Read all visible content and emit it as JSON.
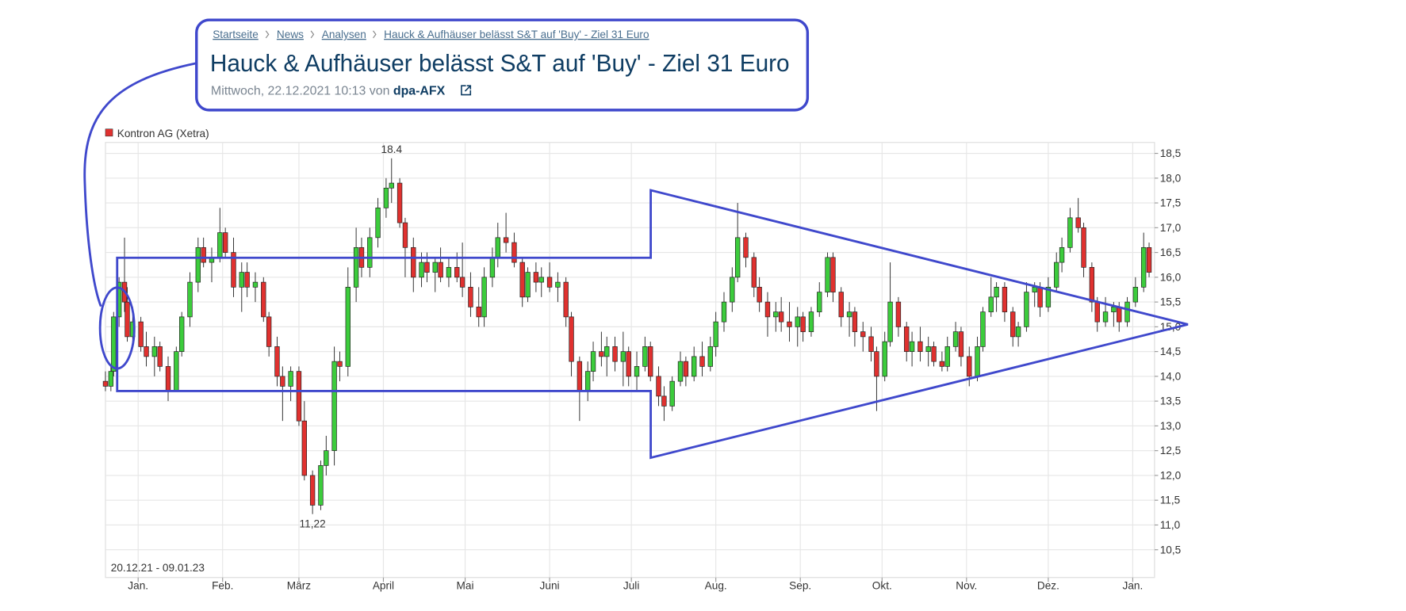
{
  "header": {
    "breadcrumbs": [
      "Startseite",
      "News",
      "Analysen",
      "Hauck & Aufhäuser belässt S&T auf 'Buy' - Ziel 31 Euro"
    ],
    "title": "Hauck & Aufhäuser belässt S&T auf 'Buy' - Ziel 31 Euro",
    "meta": "Mittwoch, 22.12.2021 10:13 von",
    "source": "dpa-AFX"
  },
  "chart_data": {
    "type": "candlestick",
    "period": "20.12.21 - 09.01.23",
    "xlim": [
      0,
      385
    ],
    "xticks": [
      {
        "value": 12,
        "label": "Jan."
      },
      {
        "value": 43,
        "label": "Feb."
      },
      {
        "value": 71,
        "label": "März"
      },
      {
        "value": 102,
        "label": "April"
      },
      {
        "value": 132,
        "label": "Mai"
      },
      {
        "value": 163,
        "label": "Juni"
      },
      {
        "value": 193,
        "label": "Juli"
      },
      {
        "value": 224,
        "label": "Aug."
      },
      {
        "value": 255,
        "label": "Sep."
      },
      {
        "value": 285,
        "label": "Okt."
      },
      {
        "value": 316,
        "label": "Nov."
      },
      {
        "value": 346,
        "label": "Dez."
      },
      {
        "value": 377,
        "label": "Jan."
      }
    ],
    "ylim": [
      9.94,
      18.72
    ],
    "yticks": [
      {
        "value": 10.5,
        "label": "10,5"
      },
      {
        "value": 11,
        "label": "11,0"
      },
      {
        "value": 11.5,
        "label": "11,5"
      },
      {
        "value": 12,
        "label": "12,0"
      },
      {
        "value": 12.5,
        "label": "12,5"
      },
      {
        "value": 13,
        "label": "13,0"
      },
      {
        "value": 13.5,
        "label": "13,5"
      },
      {
        "value": 14,
        "label": "14,0"
      },
      {
        "value": 14.5,
        "label": "14,5"
      },
      {
        "value": 15,
        "label": "15,0"
      },
      {
        "value": 15.5,
        "label": "15,5"
      },
      {
        "value": 16,
        "label": "16,0"
      },
      {
        "value": 16.5,
        "label": "16,5"
      },
      {
        "value": 17,
        "label": "17,0"
      },
      {
        "value": 17.5,
        "label": "17,5"
      },
      {
        "value": 18,
        "label": "18,0"
      },
      {
        "value": 18.5,
        "label": "18,5"
      }
    ],
    "grid": true,
    "high_label": 18.4,
    "low_label": {
      "value": 11.22,
      "label": "11,22"
    },
    "x": [
      0,
      2,
      3,
      5,
      7,
      8,
      10,
      13,
      15,
      18,
      20,
      23,
      26,
      28,
      31,
      34,
      36,
      39,
      42,
      44,
      47,
      50,
      52,
      55,
      58,
      60,
      63,
      65,
      68,
      71,
      73,
      76,
      79,
      81,
      84,
      86,
      89,
      92,
      94,
      97,
      100,
      103,
      105,
      108,
      110,
      113,
      116,
      118,
      121,
      123,
      126,
      129,
      131,
      134,
      137,
      139,
      142,
      144,
      147,
      150,
      153,
      155,
      158,
      160,
      163,
      166,
      169,
      171,
      174,
      177,
      179,
      182,
      184,
      187,
      190,
      192,
      195,
      198,
      200,
      203,
      205,
      208,
      211,
      213,
      216,
      219,
      222,
      224,
      227,
      230,
      232,
      235,
      238,
      240,
      243,
      246,
      248,
      251,
      254,
      256,
      259,
      262,
      265,
      267,
      270,
      273,
      275,
      278,
      281,
      283,
      286,
      288,
      291,
      294,
      296,
      299,
      302,
      304,
      307,
      309,
      312,
      314,
      317,
      320,
      322,
      325,
      327,
      330,
      333,
      335,
      338,
      341,
      343,
      346,
      349,
      351,
      354,
      357,
      359,
      362,
      364,
      367,
      370,
      372,
      375,
      378,
      381,
      383
    ],
    "series": [
      {
        "name": "Kontron AG (Xetra)",
        "color": "#e0312f",
        "up_color": "#3ccc3c",
        "open": [
          13.9,
          13.8,
          14.1,
          15.2,
          15.9,
          15.5,
          14.8,
          15.1,
          14.6,
          14.4,
          14.6,
          14.2,
          13.7,
          14.5,
          15.2,
          15.9,
          16.6,
          16.3,
          16.4,
          16.9,
          16.5,
          15.8,
          16.1,
          15.8,
          15.9,
          15.2,
          14.6,
          14.0,
          13.8,
          14.1,
          13.1,
          12.0,
          11.4,
          12.2,
          12.5,
          14.3,
          14.2,
          15.8,
          16.6,
          16.2,
          16.8,
          17.4,
          17.8,
          17.9,
          17.1,
          16.6,
          16.0,
          16.3,
          16.1,
          16.3,
          16.0,
          16.2,
          16.0,
          15.8,
          15.4,
          15.2,
          16.0,
          16.4,
          16.8,
          16.7,
          16.3,
          15.6,
          16.1,
          15.9,
          16.0,
          15.8,
          15.9,
          15.2,
          14.3,
          13.7,
          14.1,
          14.5,
          14.4,
          14.6,
          14.3,
          14.5,
          14.0,
          14.2,
          14.6,
          14.0,
          13.6,
          13.4,
          13.9,
          14.3,
          14.0,
          14.4,
          14.2,
          14.6,
          15.1,
          15.5,
          16.0,
          16.8,
          16.4,
          15.8,
          15.5,
          15.2,
          15.3,
          15.1,
          15.0,
          15.2,
          14.9,
          15.3,
          15.7,
          16.4,
          15.7,
          15.2,
          15.3,
          14.9,
          14.8,
          14.5,
          14.0,
          14.7,
          15.5,
          15.0,
          14.5,
          14.7,
          14.5,
          14.6,
          14.3,
          14.2,
          14.6,
          14.9,
          14.4,
          14.0,
          14.6,
          15.3,
          15.6,
          15.8,
          15.3,
          14.8,
          15.0,
          15.7,
          15.8,
          15.4,
          15.8,
          16.3,
          16.6,
          17.2,
          17.0,
          16.2,
          15.5,
          15.1,
          15.3,
          15.4,
          15.1,
          15.5,
          15.8,
          16.6
        ],
        "high": [
          14.1,
          14.2,
          15.3,
          16.0,
          16.8,
          15.8,
          15.4,
          15.2,
          14.9,
          14.8,
          14.7,
          14.4,
          14.6,
          15.3,
          16.1,
          16.8,
          16.8,
          16.6,
          17.4,
          17.0,
          16.8,
          16.3,
          16.3,
          16.1,
          16.0,
          15.3,
          14.8,
          14.2,
          14.2,
          14.2,
          13.5,
          12.1,
          12.3,
          12.8,
          14.6,
          14.5,
          16.2,
          17.0,
          16.8,
          17.0,
          17.6,
          18.0,
          18.4,
          18.0,
          17.2,
          16.8,
          16.5,
          16.5,
          16.4,
          16.6,
          16.4,
          16.5,
          16.7,
          16.1,
          15.8,
          16.2,
          16.6,
          17.1,
          17.3,
          16.9,
          16.4,
          16.2,
          16.3,
          16.2,
          16.3,
          16.1,
          16.0,
          15.3,
          14.4,
          14.3,
          14.7,
          14.9,
          14.8,
          14.8,
          14.9,
          14.6,
          14.5,
          14.8,
          14.7,
          14.2,
          13.8,
          14.0,
          14.5,
          14.4,
          14.6,
          14.7,
          14.8,
          15.3,
          15.7,
          16.2,
          17.5,
          16.9,
          16.5,
          16.0,
          15.7,
          15.5,
          15.6,
          15.5,
          15.4,
          15.3,
          15.4,
          15.9,
          16.5,
          16.5,
          15.8,
          15.5,
          15.4,
          15.1,
          15.0,
          14.6,
          14.9,
          16.3,
          15.6,
          15.1,
          14.9,
          15.0,
          14.8,
          14.7,
          14.5,
          14.8,
          15.1,
          15.0,
          14.6,
          14.8,
          15.4,
          16.0,
          15.9,
          15.9,
          15.4,
          15.1,
          15.9,
          15.9,
          15.9,
          16.0,
          16.5,
          16.8,
          17.4,
          17.6,
          17.1,
          16.3,
          15.6,
          15.6,
          15.5,
          15.5,
          15.6,
          16.0,
          16.9,
          16.7
        ],
        "low": [
          13.7,
          13.7,
          14.0,
          15.0,
          15.3,
          14.7,
          14.6,
          14.5,
          14.2,
          14.0,
          14.1,
          13.5,
          13.7,
          14.4,
          15.0,
          15.7,
          16.2,
          15.9,
          16.3,
          16.4,
          15.6,
          15.3,
          15.6,
          15.5,
          15.1,
          14.4,
          13.8,
          13.1,
          13.5,
          13.0,
          11.9,
          11.22,
          11.3,
          12.0,
          12.2,
          13.9,
          14.0,
          15.5,
          16.0,
          16.0,
          16.6,
          17.2,
          17.5,
          17.0,
          16.0,
          15.7,
          15.8,
          15.9,
          15.7,
          15.9,
          15.8,
          15.9,
          15.6,
          15.2,
          15.0,
          15.0,
          15.8,
          16.2,
          16.5,
          16.2,
          15.4,
          15.5,
          15.7,
          15.6,
          15.7,
          15.5,
          15.0,
          14.0,
          13.1,
          13.5,
          13.9,
          14.2,
          14.0,
          14.1,
          13.8,
          13.8,
          13.7,
          14.1,
          13.9,
          13.4,
          13.1,
          13.3,
          13.8,
          13.8,
          13.9,
          14.0,
          14.1,
          14.4,
          14.9,
          15.3,
          15.9,
          16.2,
          15.6,
          15.3,
          14.8,
          14.9,
          14.9,
          14.7,
          14.6,
          14.7,
          14.8,
          15.2,
          15.6,
          15.5,
          15.0,
          14.8,
          14.6,
          14.5,
          14.3,
          13.3,
          13.9,
          14.6,
          14.8,
          14.3,
          14.2,
          14.3,
          14.2,
          14.2,
          14.1,
          14.1,
          14.5,
          14.2,
          13.8,
          13.9,
          14.5,
          15.2,
          15.3,
          15.1,
          14.6,
          14.6,
          14.9,
          15.4,
          15.2,
          15.3,
          15.7,
          16.1,
          16.5,
          16.9,
          16.0,
          15.3,
          14.9,
          15.0,
          15.0,
          14.9,
          15.0,
          15.4,
          15.7,
          16.0
        ],
        "close": [
          13.8,
          14.1,
          15.2,
          15.9,
          15.5,
          14.8,
          15.1,
          14.6,
          14.4,
          14.6,
          14.2,
          13.7,
          14.5,
          15.2,
          15.9,
          16.6,
          16.3,
          16.4,
          16.9,
          16.5,
          15.8,
          16.1,
          15.8,
          15.9,
          15.2,
          14.6,
          14.0,
          13.8,
          14.1,
          13.1,
          12.0,
          11.4,
          12.2,
          12.5,
          14.3,
          14.2,
          15.8,
          16.6,
          16.2,
          16.8,
          17.4,
          17.8,
          17.9,
          17.1,
          16.6,
          16.0,
          16.3,
          16.1,
          16.3,
          16.0,
          16.2,
          16.0,
          15.8,
          15.4,
          15.2,
          16.0,
          16.4,
          16.8,
          16.7,
          16.3,
          15.6,
          16.1,
          15.9,
          16.0,
          15.8,
          15.9,
          15.2,
          14.3,
          13.7,
          14.1,
          14.5,
          14.4,
          14.6,
          14.3,
          14.5,
          14.0,
          14.2,
          14.6,
          14.0,
          13.6,
          13.4,
          13.9,
          14.3,
          14.0,
          14.4,
          14.2,
          14.6,
          15.1,
          15.5,
          16.0,
          16.8,
          16.4,
          15.8,
          15.5,
          15.2,
          15.3,
          15.1,
          15.0,
          15.2,
          14.9,
          15.3,
          15.7,
          16.4,
          15.7,
          15.2,
          15.3,
          14.9,
          14.8,
          14.5,
          14.0,
          14.7,
          15.5,
          15.0,
          14.5,
          14.7,
          14.5,
          14.6,
          14.3,
          14.2,
          14.6,
          14.9,
          14.4,
          14.0,
          14.6,
          15.3,
          15.6,
          15.8,
          15.3,
          14.8,
          15.0,
          15.7,
          15.8,
          15.4,
          15.8,
          16.3,
          16.6,
          17.2,
          17.0,
          16.2,
          15.5,
          15.1,
          15.3,
          15.4,
          15.1,
          15.5,
          15.8,
          16.6,
          16.1
        ]
      }
    ]
  }
}
